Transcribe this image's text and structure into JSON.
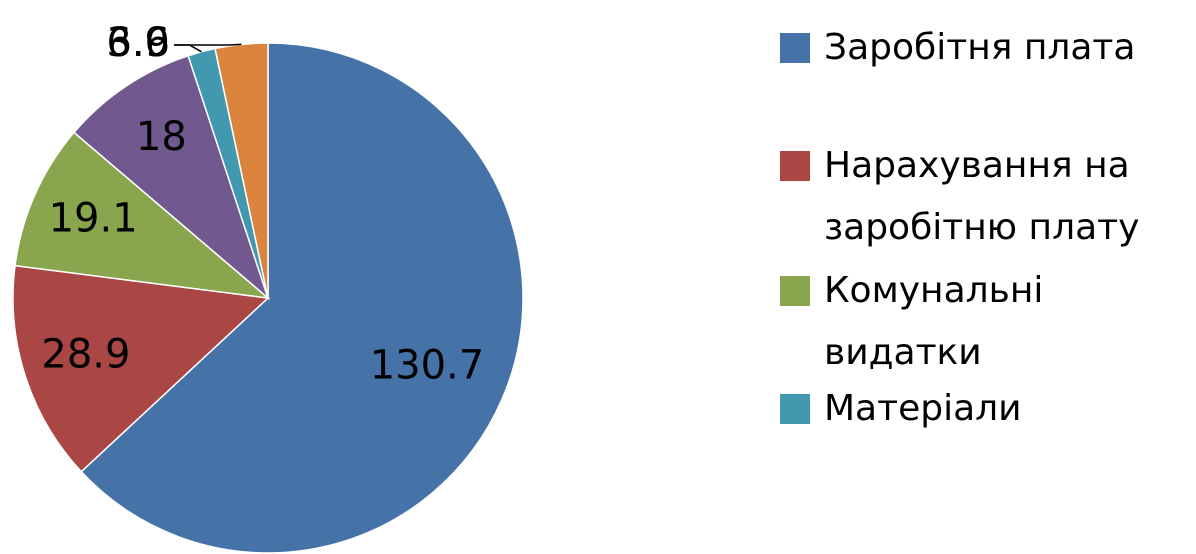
{
  "chart_data": {
    "type": "pie",
    "categories": [
      "Заробітня плата",
      "Нарахування на заробітню плату",
      "Комунальні видатки",
      null,
      "Матеріали",
      null
    ],
    "values": [
      130.7,
      28.9,
      19.1,
      18,
      3.6,
      6.9
    ],
    "colors": [
      "#4572a7",
      "#aa4643",
      "#89a54e",
      "#71588f",
      "#4198af",
      "#db843d"
    ]
  }
}
